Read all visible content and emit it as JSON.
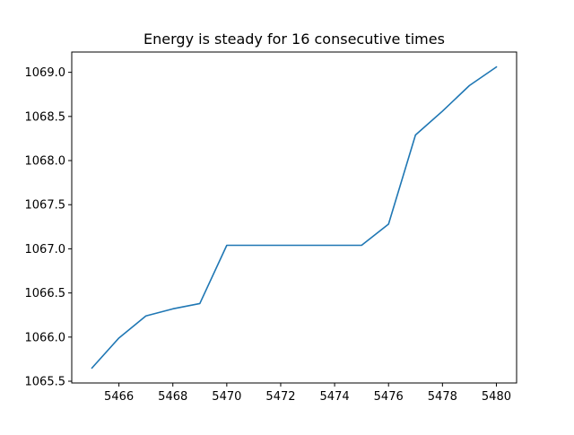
{
  "chart_data": {
    "type": "line",
    "title": "Energy is steady for 16 consecutive times",
    "xlabel": "",
    "ylabel": "",
    "xlim": [
      5464.25,
      5480.75
    ],
    "ylim": [
      1065.48,
      1069.23
    ],
    "grid": false,
    "x_ticks": [
      5466,
      5468,
      5470,
      5472,
      5474,
      5476,
      5478,
      5480
    ],
    "y_ticks": [
      1065.5,
      1066.0,
      1066.5,
      1067.0,
      1067.5,
      1068.0,
      1068.5,
      1069.0
    ],
    "x_tick_labels": [
      "5466",
      "5468",
      "5470",
      "5472",
      "5474",
      "5476",
      "5478",
      "5480"
    ],
    "y_tick_labels": [
      "1065.5",
      "1066.0",
      "1066.5",
      "1067.0",
      "1067.5",
      "1068.0",
      "1068.5",
      "1069.0"
    ],
    "series": [
      {
        "color": "#1f77b4",
        "x": [
          5465,
          5466,
          5467,
          5468,
          5469,
          5470,
          5471,
          5472,
          5473,
          5474,
          5475,
          5476,
          5477,
          5478,
          5479,
          5480
        ],
        "y": [
          1065.65,
          1065.99,
          1066.24,
          1066.32,
          1066.38,
          1067.04,
          1067.04,
          1067.04,
          1067.04,
          1067.04,
          1067.04,
          1067.28,
          1068.29,
          1068.56,
          1068.85,
          1069.06
        ]
      }
    ]
  }
}
